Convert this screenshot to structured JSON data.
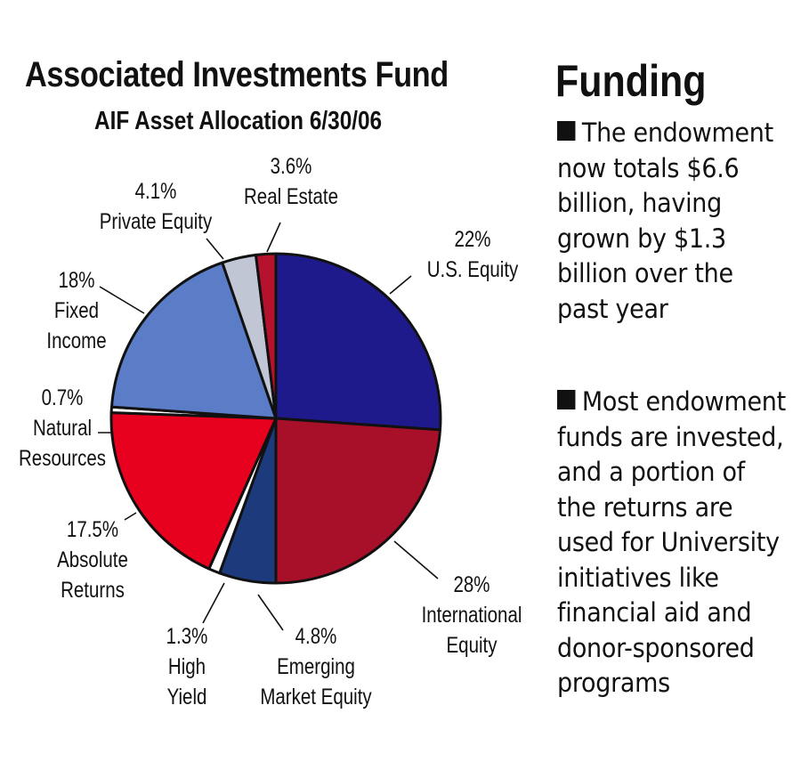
{
  "header": {
    "title": "Associated Investments Fund",
    "subtitle": "AIF Asset Allocation 6/30/06"
  },
  "sidebar": {
    "title": "Funding",
    "bullets": [
      {
        "icon": "black-square-bullet",
        "lead": "The",
        "text": "endowment now totals $6.6 billion, having grown by $1.3 billion over the past year"
      },
      {
        "icon": "black-square-bullet",
        "lead": "Most",
        "text": "endowment funds are invested, and a portion of the returns are used for University initiatives like financial aid and donor-sponsored programs"
      }
    ]
  },
  "slices": [
    {
      "name": "U.S. Equity",
      "pct_label": "22%",
      "color": "#1f1a8c"
    },
    {
      "name": "International Equity",
      "pct_label": "28%",
      "color": "#a8102a"
    },
    {
      "name": "Emerging Market Equity",
      "pct_label": "4.8%",
      "color": "#1c3a7c"
    },
    {
      "name": "High Yield",
      "pct_label": "1.3%",
      "color": "#ffffff"
    },
    {
      "name": "Absolute Returns",
      "pct_label": "17.5%",
      "color": "#e8001f"
    },
    {
      "name": "Natural Resources",
      "pct_label": "0.7%",
      "color": "#ffffff"
    },
    {
      "name": "Fixed Income",
      "pct_label": "18%",
      "color": "#5b7cc6"
    },
    {
      "name": "Private Equity",
      "pct_label": "4.1%",
      "color": "#c0c6d4"
    },
    {
      "name": "Real Estate",
      "pct_label": "3.6%",
      "color": "#b5122e"
    }
  ],
  "chart_data": {
    "type": "pie",
    "title": "Associated Investments Fund",
    "subtitle": "AIF Asset Allocation 6/30/06",
    "categories": [
      "U.S. Equity",
      "International Equity",
      "Emerging Market Equity",
      "High Yield",
      "Absolute Returns",
      "Natural Resources",
      "Fixed Income",
      "Private Equity",
      "Real Estate"
    ],
    "values": [
      22,
      28,
      4.8,
      1.3,
      17.5,
      0.7,
      18,
      4.1,
      3.6
    ],
    "unit": "%",
    "colors": [
      "#1f1a8c",
      "#a8102a",
      "#1c3a7c",
      "#ffffff",
      "#e8001f",
      "#ffffff",
      "#5b7cc6",
      "#c0c6d4",
      "#b5122e"
    ],
    "start_angle": "12 o'clock",
    "direction": "clockwise",
    "legend": "none (leader-line labels)"
  }
}
